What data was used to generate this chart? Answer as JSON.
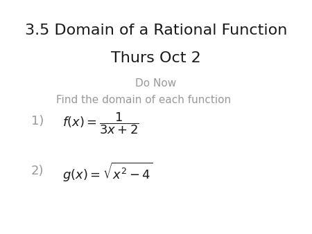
{
  "title_line1": "3.5 Domain of a Rational Function",
  "title_line2": "Thurs Oct 2",
  "subtitle": "Do Now",
  "instruction": "Find the domain of each function",
  "item1_label": "1)",
  "item2_label": "2)",
  "bg_color": "#ffffff",
  "title_color": "#1a1a1a",
  "subtitle_color": "#999999",
  "instruction_color": "#999999",
  "item_label_color": "#999999",
  "formula_color": "#1a1a1a",
  "title_fontsize": 16,
  "subtitle_fontsize": 11,
  "instruction_fontsize": 11,
  "label_fontsize": 13,
  "formula_fontsize": 13
}
